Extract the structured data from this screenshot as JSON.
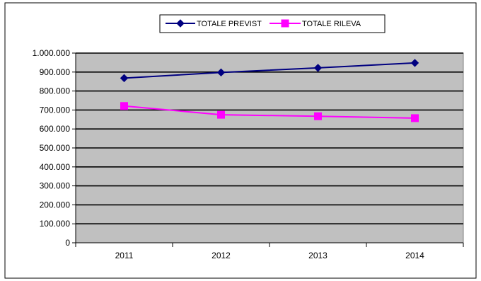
{
  "chart_data": {
    "type": "line",
    "categories": [
      "2011",
      "2012",
      "2013",
      "2014"
    ],
    "series": [
      {
        "name": "TOTALE PREVISTI",
        "legend_text": "TOTALE PREVIST",
        "color": "#000080",
        "marker": "diamond",
        "values": [
          868000,
          898000,
          922000,
          948000
        ]
      },
      {
        "name": "TOTALE RILEVATI",
        "legend_text": "TOTALE RILEVA",
        "color": "#ff00ff",
        "marker": "square",
        "values": [
          721000,
          675000,
          667000,
          657000
        ]
      }
    ],
    "ylim": [
      0,
      1000000
    ],
    "yticks": [
      "0",
      "100.000",
      "200.000",
      "300.000",
      "400.000",
      "500.000",
      "600.000",
      "700.000",
      "800.000",
      "900.000",
      "1.000.000"
    ],
    "grid": true,
    "plot_background": "#c0c0c0",
    "legend_position": "top"
  }
}
